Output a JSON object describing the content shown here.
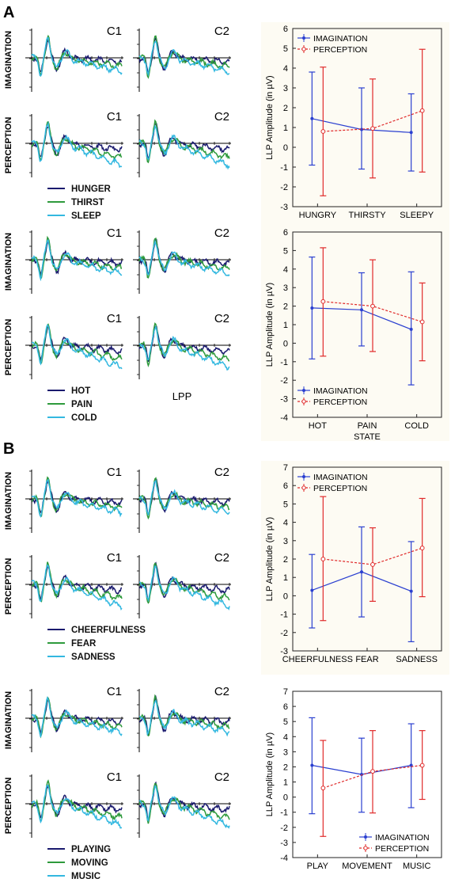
{
  "panels": [
    {
      "letter": "A"
    },
    {
      "letter": "B"
    }
  ],
  "erp_groups": [
    {
      "legend": [
        "HUNGER",
        "THIRST",
        "SLEEP"
      ],
      "extra_label": ""
    },
    {
      "legend": [
        "HOT",
        "PAIN",
        "COLD"
      ],
      "extra_label": "LPP"
    },
    {
      "legend": [
        "CHEERFULNESS",
        "FEAR",
        "SADNESS"
      ],
      "extra_label": ""
    },
    {
      "legend": [
        "PLAYING",
        "MOVING",
        "MUSIC"
      ],
      "extra_label": ""
    }
  ],
  "erp_rows": [
    "IMAGINATION",
    "PERCEPTION"
  ],
  "erp_cols": [
    "C1",
    "C2"
  ],
  "erp_colors": [
    "#1a1a6e",
    "#2e9a3c",
    "#33b8e0"
  ],
  "series_colors": {
    "imagination": "#2a3fd0",
    "perception": "#e02a2a"
  },
  "chart_data": [
    {
      "type": "line",
      "ylabel": "LLP Amplitude (in µV)",
      "xlabel": "",
      "categories": [
        "HUNGRY",
        "THIRSTY",
        "SLEEPY"
      ],
      "ylim": [
        -3,
        6
      ],
      "yticks": [
        "-3",
        "-2",
        "-1",
        "0",
        "1",
        "2",
        "3",
        "4",
        "5",
        "6"
      ],
      "legend_position": "top-left",
      "series": [
        {
          "name": "IMAGINATION",
          "values": [
            1.45,
            0.9,
            0.75
          ],
          "lower": [
            -0.9,
            -1.1,
            -1.2
          ],
          "upper": [
            3.8,
            3.0,
            2.7
          ]
        },
        {
          "name": "PERCEPTION",
          "values": [
            0.8,
            0.95,
            1.85
          ],
          "lower": [
            -2.45,
            -1.55,
            -1.25
          ],
          "upper": [
            4.05,
            3.45,
            4.95
          ]
        }
      ]
    },
    {
      "type": "line",
      "ylabel": "LLP Amplitude (in µV)",
      "xlabel": "STATE",
      "categories": [
        "HOT",
        "PAIN",
        "COLD"
      ],
      "ylim": [
        -4,
        6
      ],
      "yticks": [
        "-4",
        "-3",
        "-2",
        "-1",
        "0",
        "1",
        "2",
        "3",
        "4",
        "5",
        "6"
      ],
      "legend_position": "bottom-left",
      "series": [
        {
          "name": "IMAGINATION",
          "values": [
            1.9,
            1.8,
            0.75
          ],
          "lower": [
            -0.85,
            -0.15,
            -2.25
          ],
          "upper": [
            4.65,
            3.8,
            3.85
          ]
        },
        {
          "name": "PERCEPTION",
          "values": [
            2.25,
            2.0,
            1.15
          ],
          "lower": [
            -0.7,
            -0.45,
            -0.95
          ],
          "upper": [
            5.15,
            4.5,
            3.25
          ]
        }
      ]
    },
    {
      "type": "line",
      "ylabel": "LLP Amplitude (in µV)",
      "xlabel": "",
      "categories": [
        "CHEERFULNESS",
        "FEAR",
        "SADNESS"
      ],
      "ylim": [
        -3,
        7
      ],
      "yticks": [
        "-3",
        "-2",
        "-1",
        "0",
        "1",
        "2",
        "3",
        "4",
        "5",
        "6",
        "7"
      ],
      "legend_position": "top-left",
      "series": [
        {
          "name": "IMAGINATION",
          "values": [
            0.3,
            1.3,
            0.25
          ],
          "lower": [
            -1.75,
            -1.15,
            -2.5
          ],
          "upper": [
            2.25,
            3.75,
            2.95
          ]
        },
        {
          "name": "PERCEPTION",
          "values": [
            2.0,
            1.7,
            2.6
          ],
          "lower": [
            -1.35,
            -0.3,
            -0.05
          ],
          "upper": [
            5.4,
            3.7,
            5.3
          ]
        }
      ]
    },
    {
      "type": "line",
      "ylabel": "LLP Amplitude (in µV)",
      "xlabel": "",
      "categories": [
        "PLAY",
        "MOVEMENT",
        "MUSIC"
      ],
      "ylim": [
        -4,
        7
      ],
      "yticks": [
        "-4",
        "-3",
        "-2",
        "-1",
        "0",
        "1",
        "2",
        "3",
        "4",
        "5",
        "6",
        "7"
      ],
      "legend_position": "bottom-right",
      "series": [
        {
          "name": "IMAGINATION",
          "values": [
            2.1,
            1.5,
            2.1
          ],
          "lower": [
            -1.1,
            -1.0,
            -0.7
          ],
          "upper": [
            5.25,
            3.9,
            4.85
          ]
        },
        {
          "name": "PERCEPTION",
          "values": [
            0.6,
            1.7,
            2.1
          ],
          "lower": [
            -2.6,
            -1.05,
            -0.15
          ],
          "upper": [
            3.75,
            4.4,
            4.4
          ]
        }
      ]
    }
  ]
}
